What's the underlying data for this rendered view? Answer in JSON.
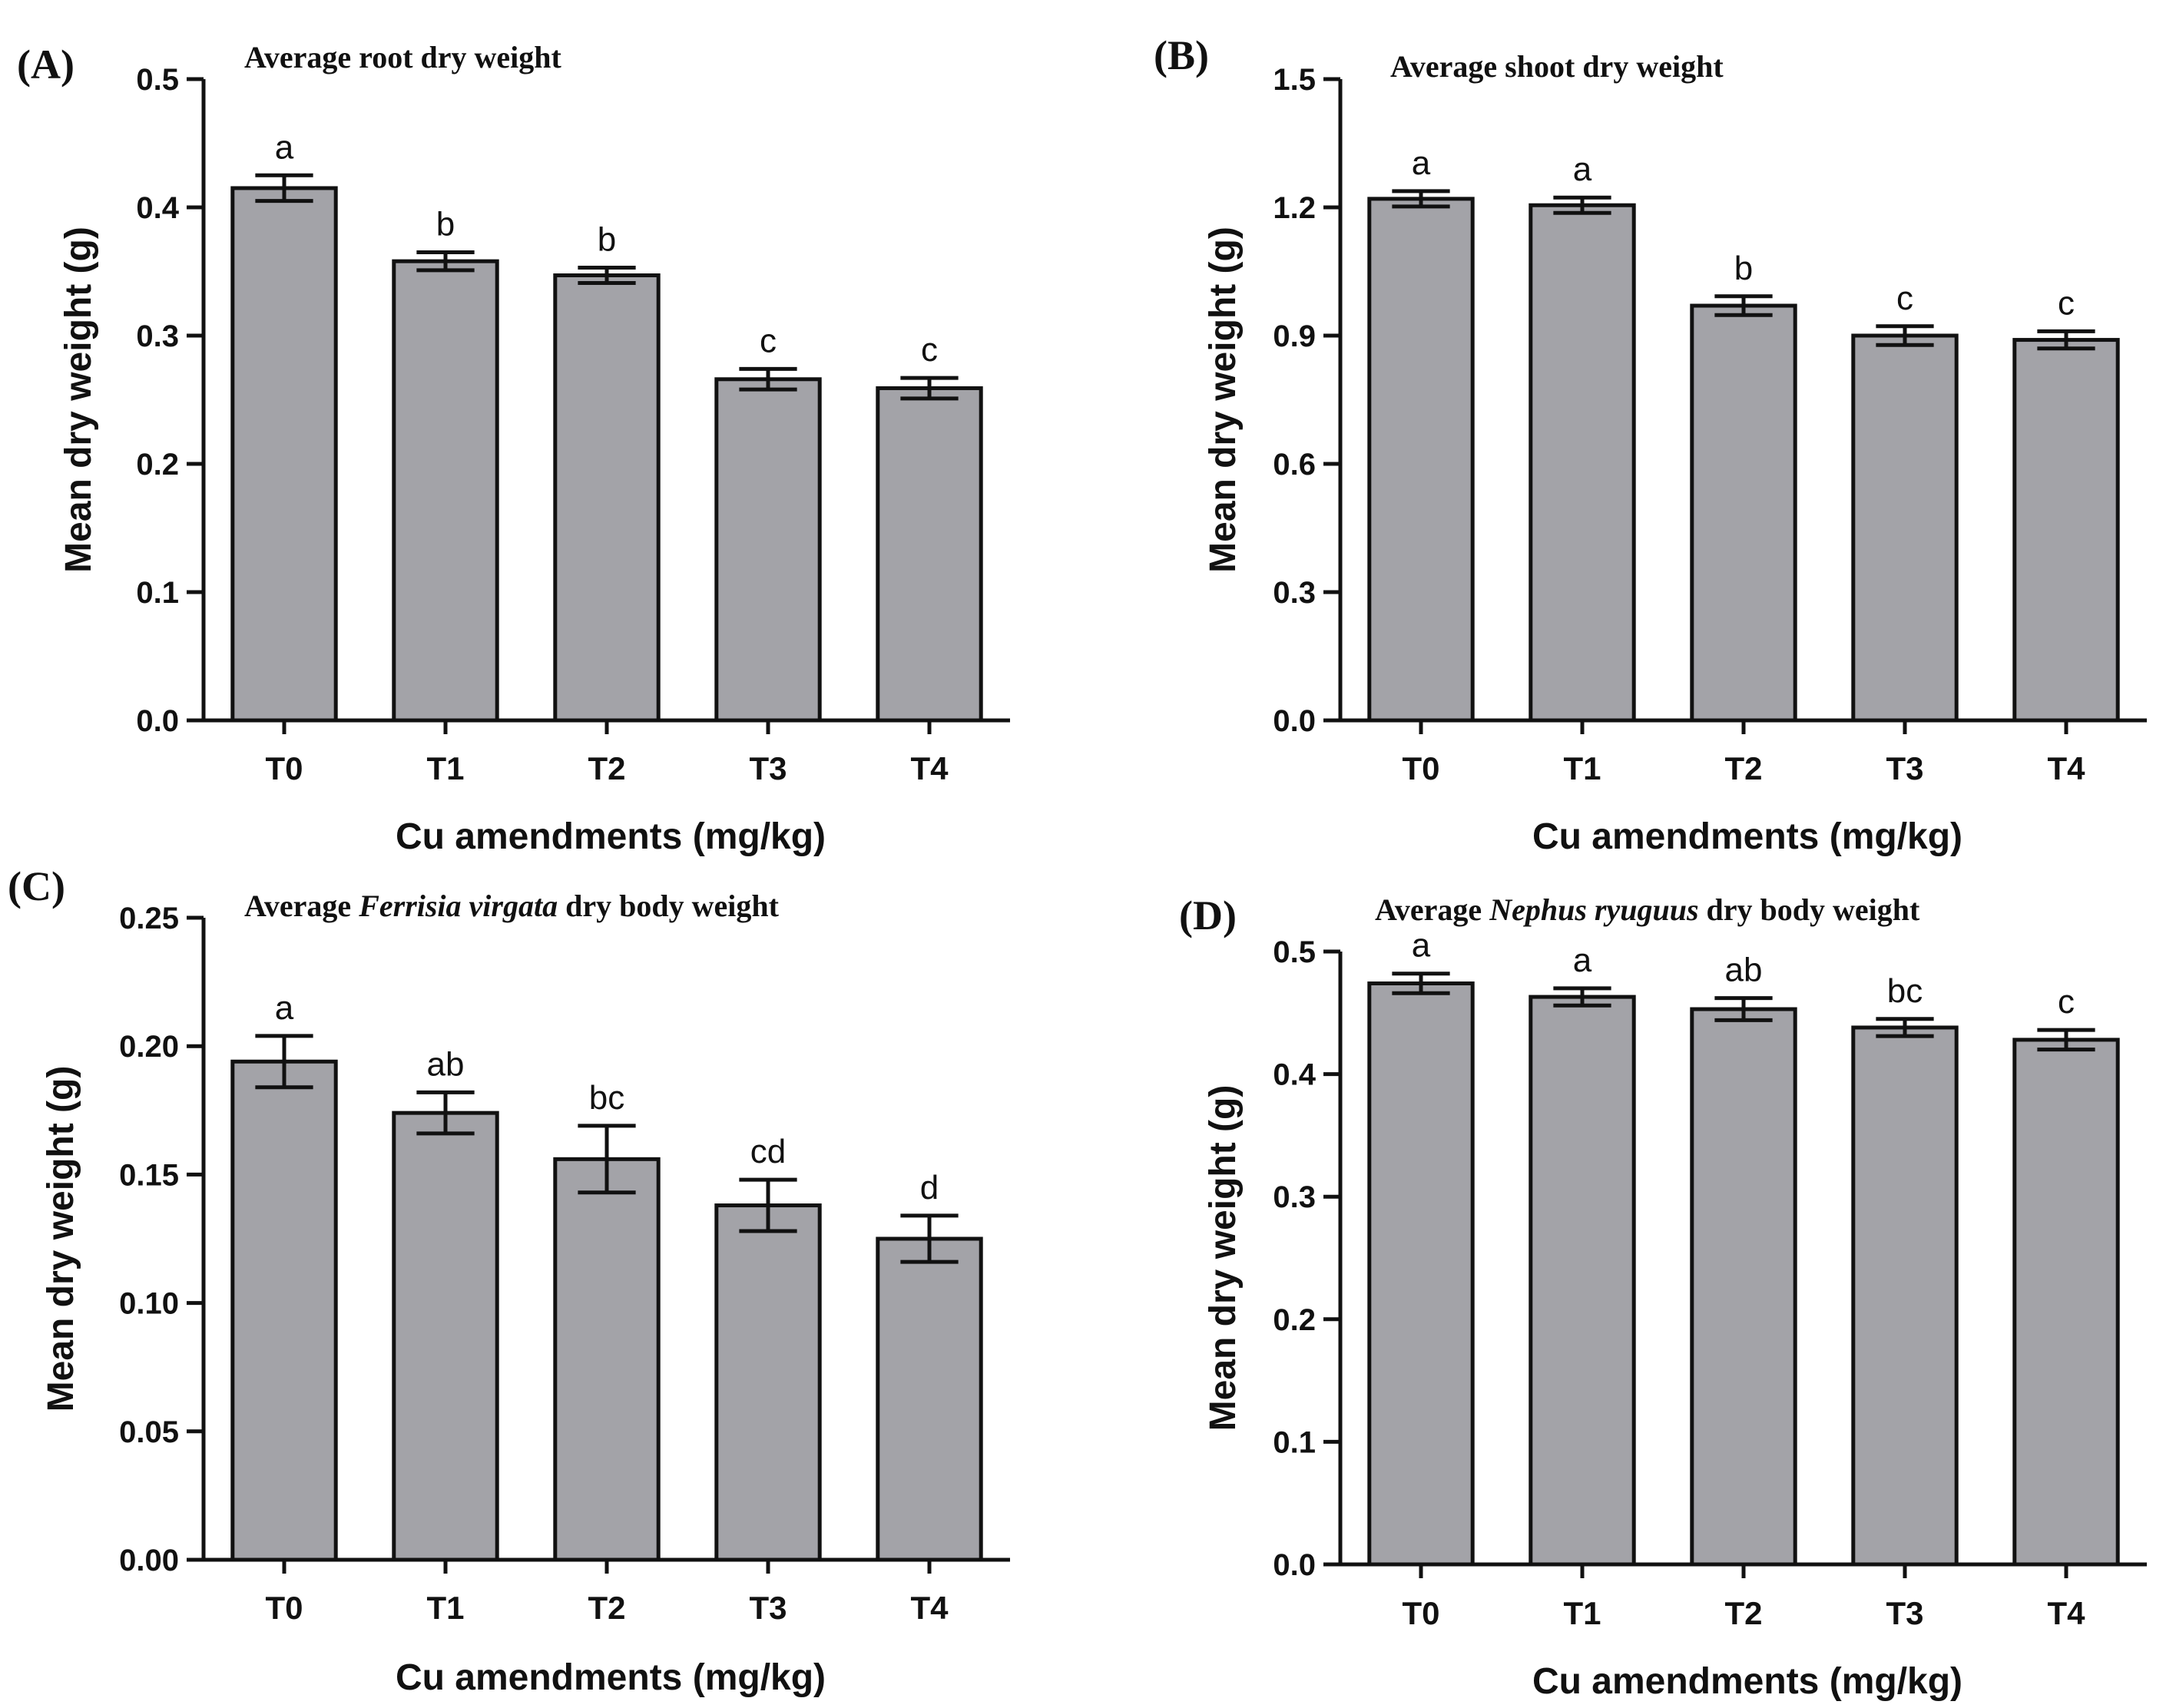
{
  "chart_data": [
    {
      "type": "bar",
      "panel_label": "(A)",
      "title_parts": [
        {
          "text": "Average root dry weight",
          "italic": false
        }
      ],
      "xlabel": "Cu amendments (mg/kg)",
      "ylabel": "Mean dry weight (g)",
      "categories": [
        "T0",
        "T1",
        "T2",
        "T3",
        "T4"
      ],
      "values": [
        0.415,
        0.358,
        0.347,
        0.266,
        0.259
      ],
      "errors": [
        0.01,
        0.007,
        0.006,
        0.008,
        0.008
      ],
      "significance": [
        "a",
        "b",
        "b",
        "c",
        "c"
      ],
      "ylim": [
        0,
        0.5
      ],
      "yticks": [
        0.0,
        0.1,
        0.2,
        0.3,
        0.4,
        0.5
      ],
      "ytick_labels": [
        "0.0",
        "0.1",
        "0.2",
        "0.3",
        "0.4",
        "0.5"
      ]
    },
    {
      "type": "bar",
      "panel_label": "(B)",
      "title_parts": [
        {
          "text": "Average shoot dry weight",
          "italic": false
        }
      ],
      "xlabel": "Cu amendments (mg/kg)",
      "ylabel": "Mean dry weight (g)",
      "categories": [
        "T0",
        "T1",
        "T2",
        "T3",
        "T4"
      ],
      "values": [
        1.22,
        1.205,
        0.97,
        0.9,
        0.89
      ],
      "errors": [
        0.018,
        0.018,
        0.022,
        0.022,
        0.02
      ],
      "significance": [
        "a",
        "a",
        "b",
        "c",
        "c"
      ],
      "ylim": [
        0,
        1.5
      ],
      "yticks": [
        0.0,
        0.3,
        0.6,
        0.9,
        1.2,
        1.5
      ],
      "ytick_labels": [
        "0.0",
        "0.3",
        "0.6",
        "0.9",
        "1.2",
        "1.5"
      ]
    },
    {
      "type": "bar",
      "panel_label": "(C)",
      "title_parts": [
        {
          "text": "Average ",
          "italic": false
        },
        {
          "text": "Ferrisia virgata",
          "italic": true
        },
        {
          "text": " dry body weight",
          "italic": false
        }
      ],
      "xlabel": "Cu amendments (mg/kg)",
      "ylabel": "Mean dry weight (g)",
      "categories": [
        "T0",
        "T1",
        "T2",
        "T3",
        "T4"
      ],
      "values": [
        0.194,
        0.174,
        0.156,
        0.138,
        0.125
      ],
      "errors": [
        0.01,
        0.008,
        0.013,
        0.01,
        0.009
      ],
      "significance": [
        "a",
        "ab",
        "bc",
        "cd",
        "d"
      ],
      "ylim": [
        0,
        0.25
      ],
      "yticks": [
        0.0,
        0.05,
        0.1,
        0.15,
        0.2,
        0.25
      ],
      "ytick_labels": [
        "0.00",
        "0.05",
        "0.10",
        "0.15",
        "0.20",
        "0.25"
      ]
    },
    {
      "type": "bar",
      "panel_label": "(D)",
      "title_parts": [
        {
          "text": "Average ",
          "italic": false
        },
        {
          "text": "Nephus ryuguus",
          "italic": true
        },
        {
          "text": " dry body weight",
          "italic": false
        }
      ],
      "xlabel": "Cu amendments (mg/kg)",
      "ylabel": "Mean dry weight (g)",
      "categories": [
        "T0",
        "T1",
        "T2",
        "T3",
        "T4"
      ],
      "values": [
        0.474,
        0.463,
        0.453,
        0.438,
        0.428
      ],
      "errors": [
        0.008,
        0.007,
        0.009,
        0.007,
        0.008
      ],
      "significance": [
        "a",
        "a",
        "ab",
        "bc",
        "c"
      ],
      "ylim": [
        0,
        0.5
      ],
      "yticks": [
        0.0,
        0.1,
        0.2,
        0.3,
        0.4,
        0.5
      ],
      "ytick_labels": [
        "0.0",
        "0.1",
        "0.2",
        "0.3",
        "0.4",
        "0.5"
      ]
    }
  ],
  "colors": {
    "bar_fill": "#a3a3a8",
    "stroke": "#111111"
  }
}
